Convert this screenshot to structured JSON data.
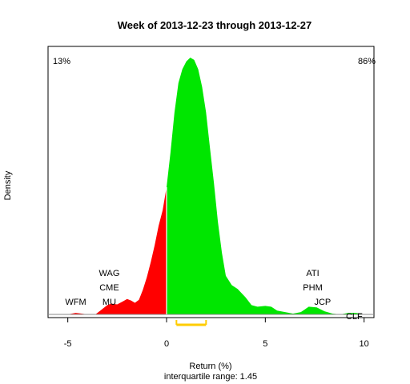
{
  "chart_data": {
    "type": "area",
    "title": "Week of 2013-12-23 through 2013-12-27",
    "xlabel": "Return (%)",
    "ylabel": "Density",
    "subtitle": "interquartile range: 1.45",
    "xlim": [
      -6.0,
      10.5
    ],
    "ylim": [
      0,
      0.4
    ],
    "x_ticks": [
      -5,
      0,
      5,
      10
    ],
    "pct_negative": "13%",
    "pct_positive": "86%",
    "colors": {
      "negative": "#ff0000",
      "positive": "#00e600",
      "iqr": "#ffcc00",
      "neg_label": "#ff0000",
      "pos_label": "#009900"
    },
    "iqr": [
      0.5,
      2.0
    ],
    "density": {
      "x": [
        -5.0,
        -4.6,
        -4.3,
        -4.0,
        -3.6,
        -3.3,
        -3.0,
        -2.8,
        -2.5,
        -2.2,
        -2.0,
        -1.8,
        -1.6,
        -1.4,
        -1.2,
        -1.0,
        -0.8,
        -0.6,
        -0.4,
        -0.2,
        0.0,
        0.2,
        0.4,
        0.6,
        0.8,
        1.0,
        1.2,
        1.4,
        1.6,
        1.8,
        2.0,
        2.2,
        2.4,
        2.6,
        2.8,
        3.0,
        3.3,
        3.6,
        4.0,
        4.3,
        4.6,
        5.0,
        5.3,
        5.6,
        6.0,
        6.4,
        6.8,
        7.2,
        7.6,
        8.0,
        8.4,
        8.8,
        9.2,
        9.6,
        10.0
      ],
      "y": [
        0.0,
        0.002,
        0.001,
        0.0,
        0.0,
        0.006,
        0.012,
        0.014,
        0.013,
        0.017,
        0.02,
        0.018,
        0.015,
        0.019,
        0.032,
        0.048,
        0.068,
        0.09,
        0.115,
        0.135,
        0.165,
        0.21,
        0.262,
        0.3,
        0.318,
        0.328,
        0.333,
        0.33,
        0.318,
        0.295,
        0.262,
        0.215,
        0.17,
        0.12,
        0.08,
        0.05,
        0.038,
        0.033,
        0.022,
        0.012,
        0.01,
        0.011,
        0.01,
        0.005,
        0.003,
        0.001,
        0.003,
        0.01,
        0.009,
        0.004,
        0.001,
        0.0,
        0.002,
        0.002,
        0.0
      ]
    },
    "tickers": [
      {
        "label": "WFM",
        "x": -4.6,
        "level": 0
      },
      {
        "label": "MU",
        "x": -2.9,
        "level": 0
      },
      {
        "label": "CME",
        "x": -2.9,
        "level": 1
      },
      {
        "label": "WAG",
        "x": -2.9,
        "level": 2
      },
      {
        "label": "ATI",
        "x": 7.4,
        "level": 2
      },
      {
        "label": "PHM",
        "x": 7.4,
        "level": 1
      },
      {
        "label": "JCP",
        "x": 7.9,
        "level": 0
      },
      {
        "label": "CLF",
        "x": 9.5,
        "level": -1
      }
    ]
  }
}
